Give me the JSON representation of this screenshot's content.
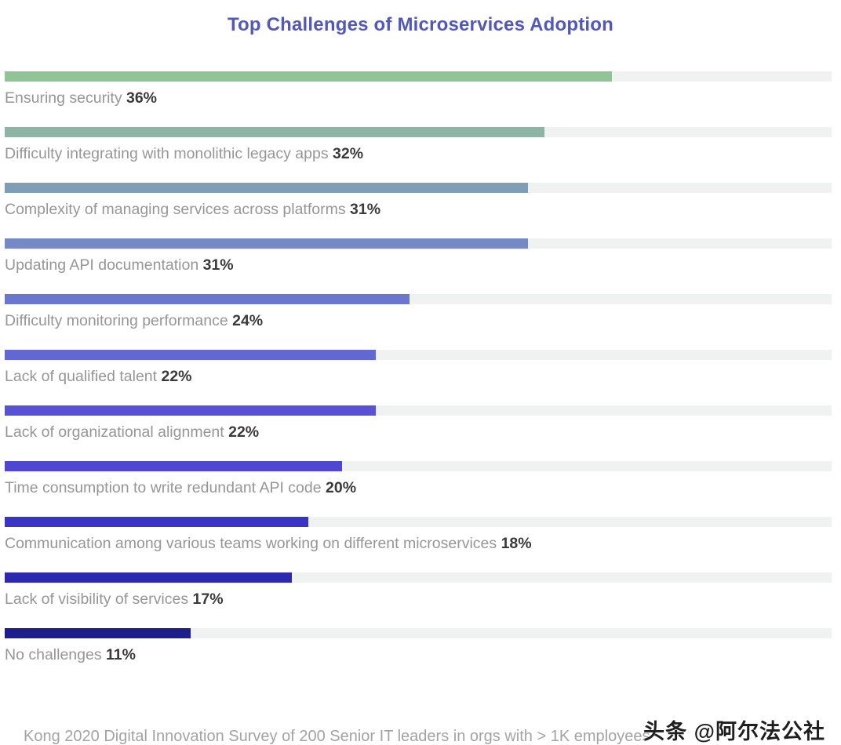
{
  "title": "Top Challenges of Microservices Adoption",
  "footer": {
    "source": "Kong 2020 Digital Innovation Survey of 200 Senior IT leaders in orgs with > 1K employees",
    "watermark": "头条 @阿尔法公社"
  },
  "colors": {
    "title": "#5158b9",
    "track": "#f0f1f1",
    "category_label": "#969696",
    "value_label": "#3a3a3a",
    "source_text": "#a3a3a3",
    "watermark_text": "#1f1f1f"
  },
  "chart_data": {
    "type": "bar",
    "orientation": "horizontal",
    "title": "Top Challenges of Microservices Adoption",
    "categories": [
      "Ensuring security",
      "Difficulty integrating with monolithic legacy apps",
      "Complexity of managing services across platforms",
      "Updating API documentation",
      "Difficulty monitoring performance",
      "Lack of qualified talent",
      "Lack of organizational alignment",
      "Time consumption to write redundant API code",
      "Communication among various teams working on different microservices",
      "Lack of visibility of services",
      "No challenges"
    ],
    "values": [
      36,
      32,
      31,
      31,
      24,
      22,
      22,
      20,
      18,
      17,
      11
    ],
    "value_labels": [
      "36%",
      "32%",
      "31%",
      "31%",
      "24%",
      "22%",
      "22%",
      "20%",
      "18%",
      "17%",
      "11%"
    ],
    "unit": "%",
    "bar_colors": [
      "#90c497",
      "#8db4a5",
      "#7f9db4",
      "#7589c6",
      "#6b76ce",
      "#6367d2",
      "#5951d5",
      "#4f46d2",
      "#3a34c6",
      "#2c29ae",
      "#1d1d90"
    ],
    "xlim": [
      0,
      49
    ],
    "grid": false,
    "legend": false,
    "value_label_position": "after-category-text-below-bar"
  }
}
